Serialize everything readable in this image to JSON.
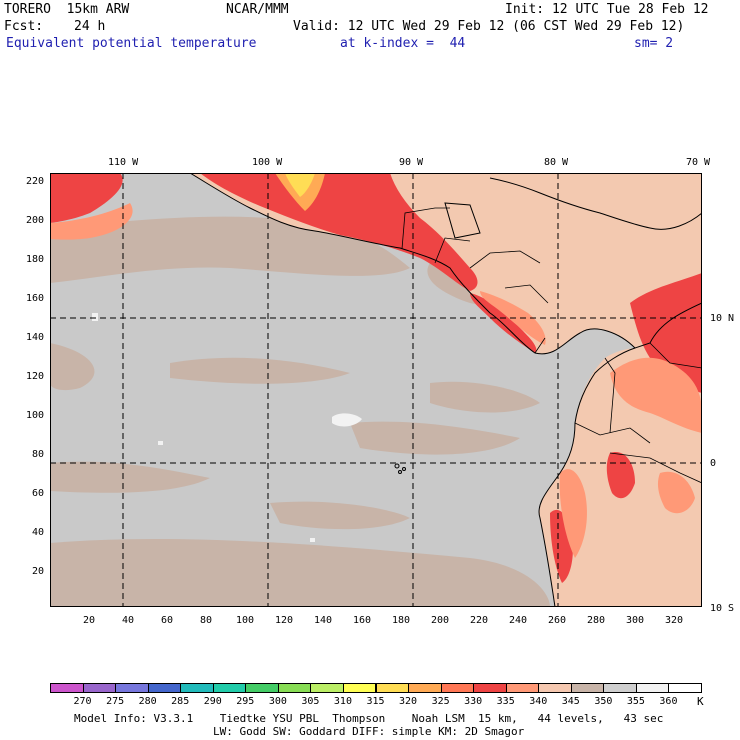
{
  "header": {
    "model": "TORERO  15km ARW",
    "center": "NCAR/MMM",
    "init": "Init: 12 UTC Tue 28 Feb 12",
    "fcst_label": "Fcst:",
    "fcst_hours": "24 h",
    "valid": "Valid: 12 UTC Wed 29 Feb 12 (06 CST Wed 29 Feb 12)",
    "field": "Equivalent potential temperature",
    "level": "at k-index =  44",
    "smoothing": "sm= 2"
  },
  "map": {
    "top_lon_labels": [
      "110 W",
      "100 W",
      "90 W",
      "80 W",
      "70 W"
    ],
    "right_lat_labels": [
      "10 N",
      "0",
      "10 S"
    ],
    "y_ticks": [
      "220",
      "200",
      "180",
      "160",
      "140",
      "120",
      "100",
      "80",
      "60",
      "40",
      "20"
    ],
    "x_ticks": [
      "20",
      "40",
      "60",
      "80",
      "100",
      "120",
      "140",
      "160",
      "180",
      "200",
      "220",
      "240",
      "260",
      "280",
      "300",
      "320"
    ],
    "ocean_color": "#c9c9c9",
    "warm_ocean_color": "#c8b4a8"
  },
  "colorbar": {
    "unit": "K",
    "labels": [
      "270",
      "275",
      "280",
      "285",
      "290",
      "295",
      "300",
      "305",
      "310",
      "315",
      "320",
      "325",
      "330",
      "335",
      "340",
      "345",
      "350",
      "355",
      "360"
    ],
    "colors": [
      "#cc55cc",
      "#9966cc",
      "#7777dd",
      "#4466cc",
      "#22bbbb",
      "#22ccaa",
      "#44cc66",
      "#88dd55",
      "#bbee66",
      "#ffff55",
      "#ffdd55",
      "#ffaa55",
      "#ff7755",
      "#ee4444",
      "#ff9977",
      "#f5c8b0",
      "#c8b4a8",
      "#cfcfcf",
      "#f2f2f2",
      "#ffffff"
    ]
  },
  "footer": {
    "line1": "Model Info: V3.3.1    Tiedtke YSU PBL  Thompson    Noah LSM  15 km,   44 levels,   43 sec",
    "line2": "LW: Godd SW: Goddard DIFF: simple KM: 2D Smagor"
  }
}
